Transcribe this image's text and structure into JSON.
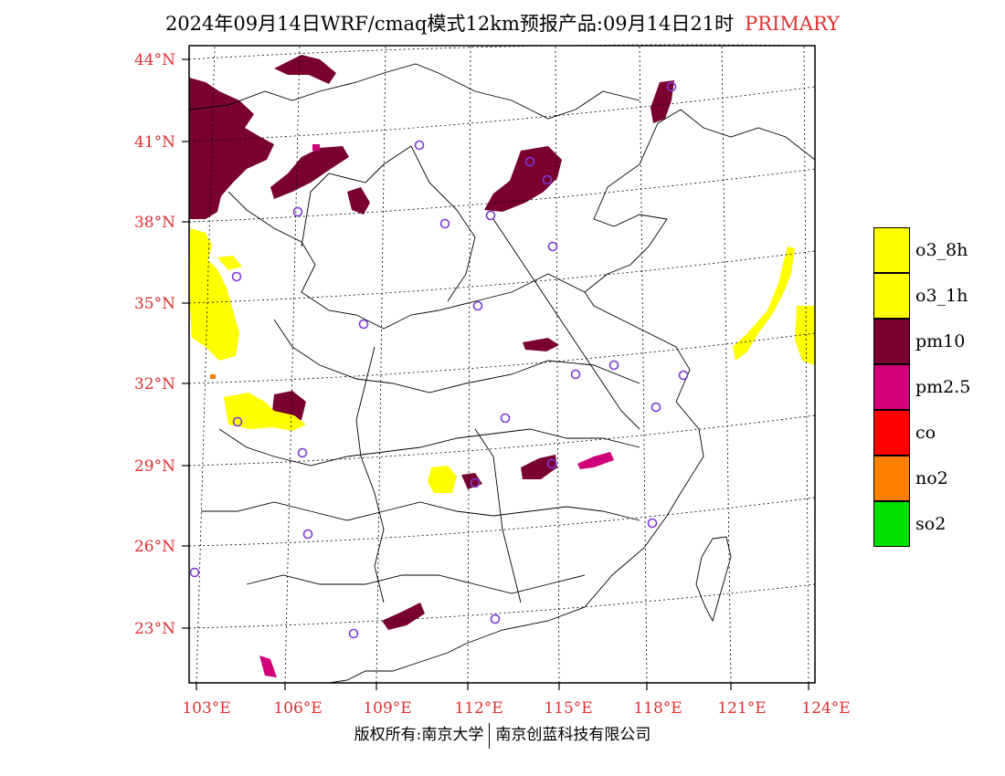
{
  "header": {
    "title": "2024年09月14日WRF/cmaq模式12km预报产品:09月14日21时",
    "tag": "PRIMARY"
  },
  "axes": {
    "latitudes": [
      "44°N",
      "41°N",
      "38°N",
      "35°N",
      "32°N",
      "29°N",
      "26°N",
      "23°N"
    ],
    "longitudes": [
      "103°E",
      "106°E",
      "109°E",
      "112°E",
      "115°E",
      "118°E",
      "121°E",
      "124°E"
    ]
  },
  "legend": [
    {
      "label": "o3_8h",
      "color": "#ffff00"
    },
    {
      "label": "o3_1h",
      "color": "#ffff00"
    },
    {
      "label": "pm10",
      "color": "#7a0030"
    },
    {
      "label": "pm2.5",
      "color": "#d0007a"
    },
    {
      "label": "co",
      "color": "#ff0000"
    },
    {
      "label": "no2",
      "color": "#ff8000"
    },
    {
      "label": "so2",
      "color": "#00e000"
    }
  ],
  "footer": {
    "left": "版权所有:南京大学",
    "right": "南京创蓝科技有限公司"
  }
}
